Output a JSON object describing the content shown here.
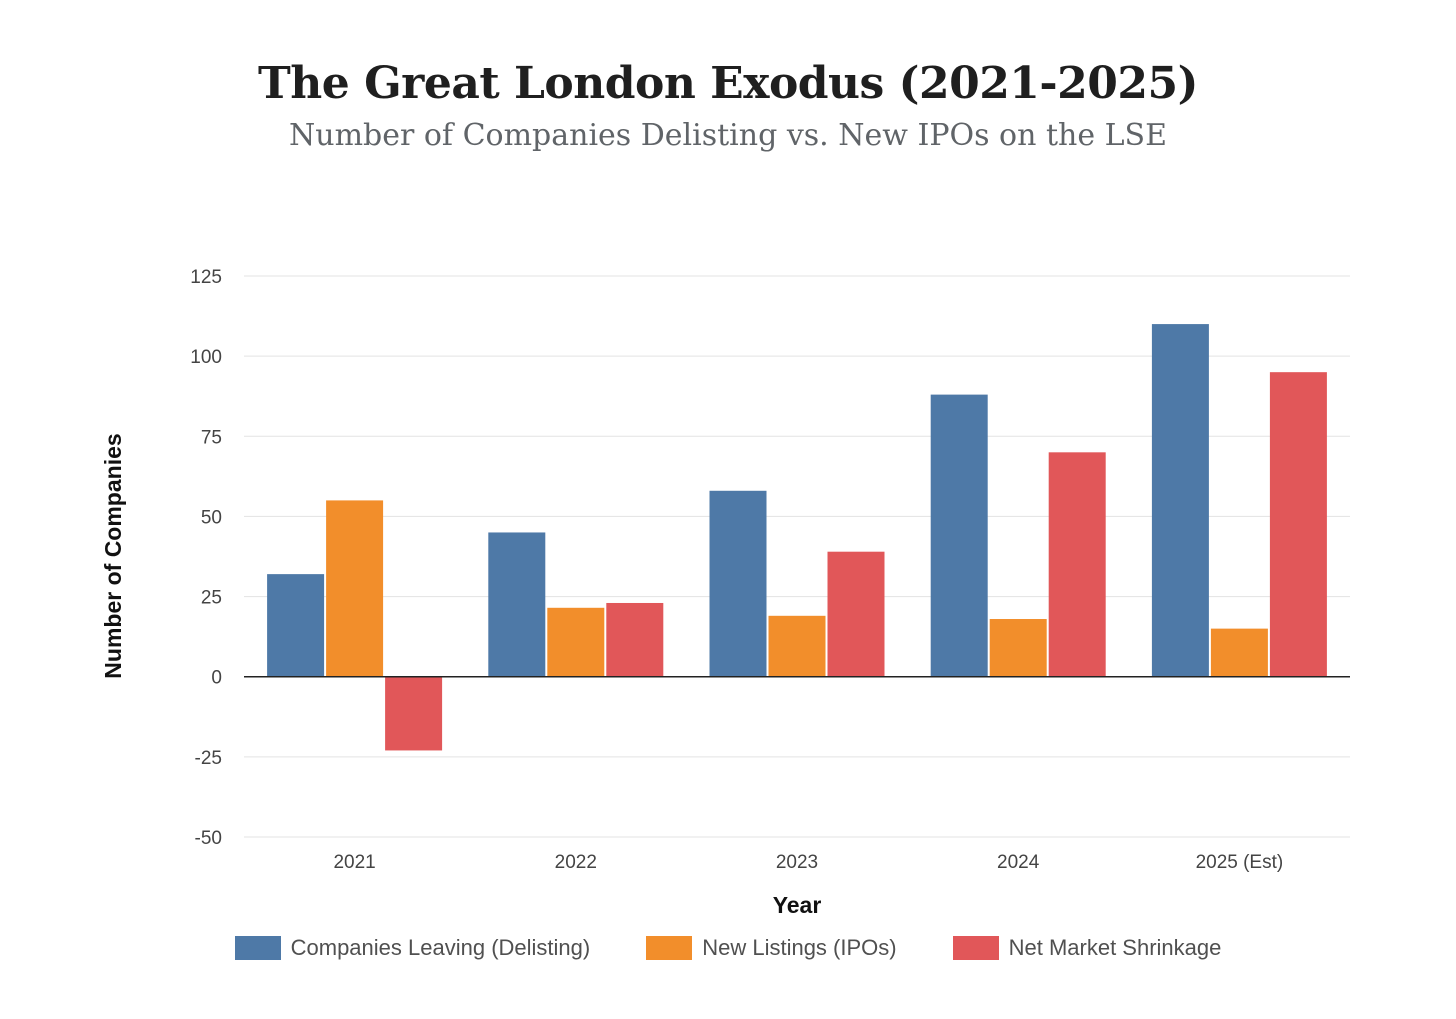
{
  "chart_data": {
    "type": "bar",
    "title": "The Great London Exodus (2021-2025)",
    "subtitle": "Number of Companies Delisting vs. New IPOs on the LSE",
    "xlabel": "Year",
    "ylabel": "Number of Companies",
    "categories": [
      "2021",
      "2022",
      "2023",
      "2024",
      "2025 (Est)"
    ],
    "ylim": [
      -50,
      125
    ],
    "yticks": [
      125,
      100,
      75,
      50,
      25,
      0,
      -25,
      -50
    ],
    "grid": true,
    "legend_position": "bottom",
    "series": [
      {
        "name": "Companies Leaving (Delisting)",
        "color": "#4e79a7",
        "values": [
          32,
          45,
          58,
          88,
          110
        ]
      },
      {
        "name": "New Listings (IPOs)",
        "color": "#f28e2b",
        "values": [
          55,
          21.5,
          19,
          18,
          15
        ]
      },
      {
        "name": "Net Market Shrinkage",
        "color": "#e15759",
        "values": [
          -23,
          23,
          39,
          70,
          95
        ]
      }
    ]
  }
}
